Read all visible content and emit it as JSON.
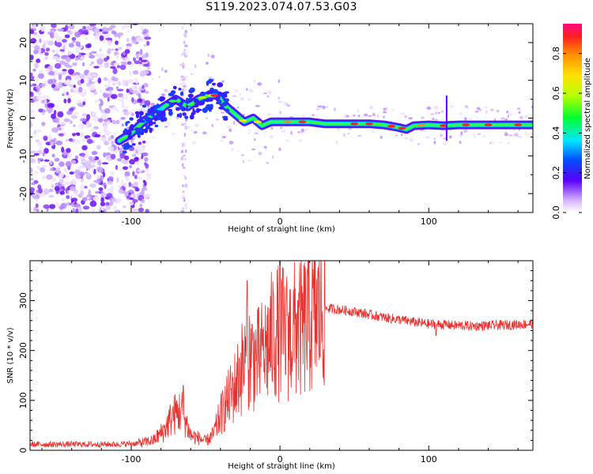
{
  "title": "S119.2023.074.07.53.G03",
  "chart_data": [
    {
      "type": "heatmap",
      "xlabel": "Height of straight line (km)",
      "ylabel": "Frequency (Hz)",
      "xlim": [
        -168,
        170
      ],
      "ylim": [
        -25,
        25
      ],
      "xticks": [
        -100,
        0,
        100
      ],
      "yticks": [
        -20,
        -10,
        0,
        10,
        20
      ],
      "colorbar": {
        "label": "Normalized spectral amplitude",
        "range": [
          0.0,
          0.95
        ],
        "ticks": [
          0.0,
          0.2,
          0.4,
          0.6,
          0.8
        ]
      },
      "ridge": {
        "name": "dominant frequency track",
        "x": [
          -108,
          -100,
          -92,
          -85,
          -78,
          -70,
          -62,
          -55,
          -48,
          -42,
          -36,
          -30,
          -24,
          -18,
          -12,
          -6,
          0,
          10,
          20,
          30,
          40,
          50,
          60,
          70,
          80,
          85,
          90,
          100,
          110,
          120,
          130,
          140,
          150,
          160,
          170
        ],
        "y": [
          -6,
          -4,
          -1,
          1,
          3,
          5,
          3,
          5,
          6,
          6,
          3,
          1,
          -1,
          0,
          -2,
          -1,
          -1,
          -1,
          -1,
          -1.5,
          -1.5,
          -1.5,
          -1.5,
          -1.8,
          -2.5,
          -3,
          -2,
          -1.8,
          -2,
          -1.8,
          -1.8,
          -1.8,
          -1.8,
          -1.8,
          -1.8
        ]
      }
    },
    {
      "type": "line",
      "xlabel": "Height of straight line (km)",
      "ylabel": "SNR (10 * v/v)",
      "xlim": [
        -168,
        170
      ],
      "ylim": [
        0,
        380
      ],
      "xticks": [
        -100,
        0,
        100
      ],
      "yticks": [
        0,
        100,
        200,
        300
      ],
      "color": "#e8322f",
      "envelope": {
        "x": [
          -168,
          -110,
          -95,
          -85,
          -78,
          -72,
          -66,
          -60,
          -55,
          -50,
          -45,
          -40,
          -35,
          -30,
          -25,
          -20,
          -15,
          -10,
          -5,
          0,
          5,
          10,
          15,
          20,
          25,
          30,
          40,
          50,
          60,
          70,
          80,
          90,
          100,
          110,
          120,
          130,
          140,
          150,
          160,
          170
        ],
        "y": [
          12,
          12,
          14,
          20,
          40,
          70,
          80,
          30,
          25,
          18,
          30,
          70,
          100,
          130,
          170,
          190,
          180,
          200,
          230,
          240,
          230,
          240,
          245,
          260,
          275,
          285,
          282,
          278,
          272,
          266,
          262,
          257,
          253,
          252,
          250,
          249,
          250,
          251,
          252,
          254
        ]
      },
      "spikes": [
        {
          "x": -65,
          "y": 130
        },
        {
          "x": -22,
          "y": 340
        },
        {
          "x": -12,
          "y": 210
        },
        {
          "x": 0,
          "y": 380
        },
        {
          "x": 5,
          "y": 270
        },
        {
          "x": 12,
          "y": 300
        },
        {
          "x": 105,
          "y": 230
        }
      ]
    }
  ]
}
